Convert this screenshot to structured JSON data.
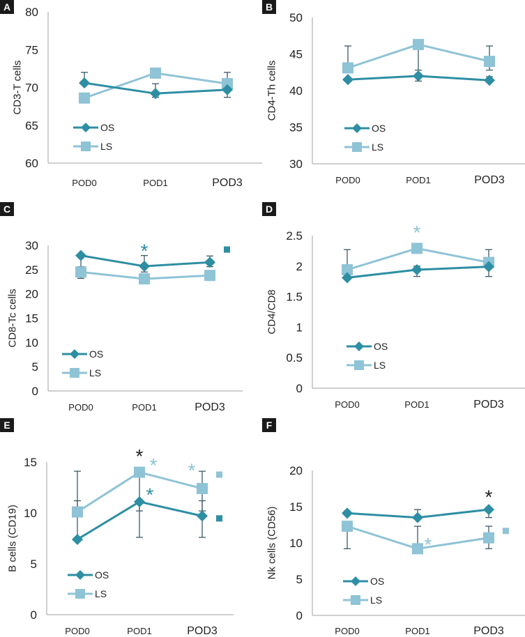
{
  "colors": {
    "OS": "#2e8ea3",
    "LS": "#8fc3d6",
    "errorbar": "#3d5a66",
    "axis": "#a0a0a0",
    "star_black": "#222222"
  },
  "chart_data": [
    {
      "panel": "A",
      "type": "line",
      "ylabel": "CD3-T cells",
      "ylim": [
        60,
        80
      ],
      "yticks": [
        60,
        65,
        70,
        75,
        80
      ],
      "categories": [
        "POD0",
        "POD1",
        "POD3"
      ],
      "legend": {
        "entries": [
          "OS",
          "LS"
        ],
        "placement": "lower-left"
      },
      "series": [
        {
          "name": "OS",
          "marker": "diamond",
          "values": [
            70.6,
            69.2,
            69.7
          ],
          "err_upper": [
            72.0,
            70.5,
            null
          ],
          "err_lower": [
            null,
            68.7,
            68.7
          ]
        },
        {
          "name": "LS",
          "marker": "square",
          "values": [
            68.6,
            71.9,
            70.5
          ],
          "err_upper": [
            null,
            null,
            72.0
          ],
          "err_lower": [
            null,
            null,
            null
          ]
        }
      ],
      "annotations": []
    },
    {
      "panel": "B",
      "type": "line",
      "ylabel": "CD4-Th cells",
      "ylim": [
        30,
        50
      ],
      "yticks": [
        30,
        35,
        40,
        45,
        50
      ],
      "categories": [
        "POD0",
        "POD1",
        "POD3"
      ],
      "legend": {
        "entries": [
          "OS",
          "LS"
        ],
        "placement": "lower-left"
      },
      "series": [
        {
          "name": "OS",
          "marker": "diamond",
          "values": [
            41.5,
            42.0,
            41.4
          ],
          "err_upper": [
            null,
            null,
            41.9
          ],
          "err_lower": [
            null,
            41.3,
            null
          ]
        },
        {
          "name": "LS",
          "marker": "square",
          "values": [
            43.1,
            46.3,
            44.0
          ],
          "err_upper": [
            46.1,
            null,
            46.1
          ],
          "err_lower": [
            null,
            42.8,
            42.8
          ]
        }
      ],
      "annotations": []
    },
    {
      "panel": "C",
      "type": "line",
      "ylabel": "CD8-Tc cells",
      "ylim": [
        0,
        30
      ],
      "yticks": [
        0,
        5,
        10,
        15,
        20,
        25,
        30
      ],
      "categories": [
        "POD0",
        "POD1",
        "POD3"
      ],
      "legend": {
        "entries": [
          "OS",
          "LS"
        ],
        "placement": "lower-left"
      },
      "series": [
        {
          "name": "OS",
          "marker": "diamond",
          "values": [
            27.9,
            25.7,
            26.5
          ],
          "err_upper": [
            null,
            27.9,
            27.8
          ],
          "err_lower": [
            25.6,
            24.5,
            25.6
          ]
        },
        {
          "name": "LS",
          "marker": "square",
          "values": [
            24.5,
            23.1,
            23.8
          ],
          "err_upper": [
            null,
            null,
            null
          ],
          "err_lower": [
            23.2,
            null,
            null
          ]
        }
      ],
      "annotations": [
        {
          "type": "star",
          "text": "*",
          "category": "POD1",
          "y": 29.5,
          "color": "OS"
        },
        {
          "type": "square",
          "category": "POD3",
          "offset": "right",
          "y": 29.2,
          "color": "OS"
        }
      ]
    },
    {
      "panel": "D",
      "type": "line",
      "ylabel": "CD4/CD8",
      "ylim": [
        0,
        2.5
      ],
      "yticks": [
        "0",
        "0.5",
        "1",
        "1.5",
        "2",
        "2.5"
      ],
      "yticks_values": [
        0,
        0.5,
        1,
        1.5,
        2,
        2.5
      ],
      "categories": [
        "POD0",
        "POD1",
        "POD3"
      ],
      "legend": {
        "entries": [
          "OS",
          "LS"
        ],
        "placement": "lower-left"
      },
      "series": [
        {
          "name": "OS",
          "marker": "diamond",
          "values": [
            1.81,
            1.94,
            1.99
          ],
          "err_upper": [
            null,
            2.0,
            null
          ],
          "err_lower": [
            null,
            1.83,
            1.83
          ]
        },
        {
          "name": "LS",
          "marker": "square",
          "values": [
            1.94,
            2.29,
            2.06
          ],
          "err_upper": [
            2.27,
            null,
            2.27
          ],
          "err_lower": [
            null,
            null,
            null
          ]
        }
      ],
      "annotations": [
        {
          "type": "star",
          "text": "*",
          "category": "POD1",
          "y": 2.6,
          "color": "LS"
        }
      ]
    },
    {
      "panel": "E",
      "type": "line",
      "ylabel": "B cells (CD19)",
      "ylim": [
        0,
        15
      ],
      "yticks": [
        0,
        5,
        10,
        15
      ],
      "categories": [
        "POD0",
        "POD1",
        "POD3"
      ],
      "legend": {
        "entries": [
          "OS",
          "LS"
        ],
        "placement": "lower-left"
      },
      "series": [
        {
          "name": "OS",
          "marker": "diamond",
          "values": [
            7.4,
            11.1,
            9.7
          ],
          "err_upper": [
            11.2,
            null,
            11.2
          ],
          "err_lower": [
            null,
            7.6,
            7.6
          ]
        },
        {
          "name": "LS",
          "marker": "square",
          "values": [
            10.1,
            14.0,
            12.4
          ],
          "err_upper": [
            14.1,
            null,
            14.1
          ],
          "err_lower": [
            null,
            10.2,
            10.2
          ]
        }
      ],
      "annotations": [
        {
          "type": "star",
          "text": "*",
          "category": "POD1",
          "y": 15.9,
          "color": "black",
          "dx": 0
        },
        {
          "type": "star",
          "text": "*",
          "category": "POD1",
          "y": 15.0,
          "color": "LS",
          "dx": 20
        },
        {
          "type": "star",
          "text": "*",
          "category": "POD1",
          "y": 12.1,
          "color": "OS",
          "dx": 15
        },
        {
          "type": "star",
          "text": "*",
          "category": "POD3",
          "y": 14.5,
          "color": "LS",
          "dx": -15
        },
        {
          "type": "square",
          "category": "POD3",
          "offset": "right",
          "y": 13.8,
          "color": "LS"
        },
        {
          "type": "square",
          "category": "POD3",
          "offset": "right",
          "y": 9.5,
          "color": "OS"
        }
      ]
    },
    {
      "panel": "F",
      "type": "line",
      "ylabel": "Nk cells (CD56)",
      "ylim": [
        0,
        20
      ],
      "yticks": [
        0,
        5,
        10,
        15,
        20
      ],
      "categories": [
        "POD0",
        "POD1",
        "POD3"
      ],
      "legend": {
        "entries": [
          "OS",
          "LS"
        ],
        "placement": "lower-left"
      },
      "series": [
        {
          "name": "OS",
          "marker": "diamond",
          "values": [
            14.1,
            13.5,
            14.6
          ],
          "err_upper": [
            14.4,
            14.6,
            null
          ],
          "err_lower": [
            null,
            null,
            13.5
          ]
        },
        {
          "name": "LS",
          "marker": "square",
          "values": [
            12.3,
            9.2,
            10.7
          ],
          "err_upper": [
            null,
            12.3,
            12.3
          ],
          "err_lower": [
            9.2,
            null,
            9.2
          ]
        }
      ],
      "annotations": [
        {
          "type": "star",
          "text": "*",
          "category": "POD3",
          "y": 16.8,
          "color": "black",
          "dx": 0
        },
        {
          "type": "star",
          "text": "*",
          "category": "POD1",
          "y": 10.2,
          "color": "LS",
          "dx": 15
        },
        {
          "type": "square",
          "category": "POD3",
          "offset": "right",
          "y": 11.7,
          "color": "LS"
        }
      ]
    }
  ]
}
